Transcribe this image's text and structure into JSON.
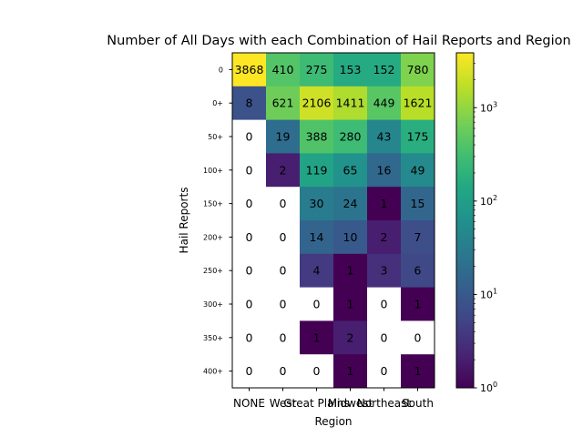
{
  "chart_data": {
    "type": "heatmap",
    "title": "Number of All Days with each Combination of Hail Reports and Region",
    "xlabel": "Region",
    "ylabel": "Hail Reports",
    "x_categories": [
      "NONE",
      "West",
      "Great Plains",
      "Midwest",
      "Northeast",
      "South"
    ],
    "y_categories": [
      "0",
      "0+",
      "50+",
      "100+",
      "150+",
      "200+",
      "250+",
      "300+",
      "350+",
      "400+"
    ],
    "values": [
      [
        3868,
        410,
        275,
        153,
        152,
        780
      ],
      [
        8,
        621,
        2106,
        1411,
        449,
        1621
      ],
      [
        0,
        19,
        388,
        280,
        43,
        175
      ],
      [
        0,
        2,
        119,
        65,
        16,
        49
      ],
      [
        0,
        0,
        30,
        24,
        1,
        15
      ],
      [
        0,
        0,
        14,
        10,
        2,
        7
      ],
      [
        0,
        0,
        4,
        1,
        3,
        6
      ],
      [
        0,
        0,
        0,
        1,
        0,
        1
      ],
      [
        0,
        0,
        1,
        2,
        0,
        0
      ],
      [
        0,
        0,
        0,
        1,
        0,
        1
      ]
    ],
    "color_scale": "log",
    "colormap": "viridis",
    "colorbar_range": [
      1,
      3868
    ],
    "colorbar_ticks": [
      {
        "base": "10",
        "exp": "0"
      },
      {
        "base": "10",
        "exp": "1"
      },
      {
        "base": "10",
        "exp": "2"
      },
      {
        "base": "10",
        "exp": "3"
      }
    ],
    "zero_cell_color": "#ffffff"
  }
}
